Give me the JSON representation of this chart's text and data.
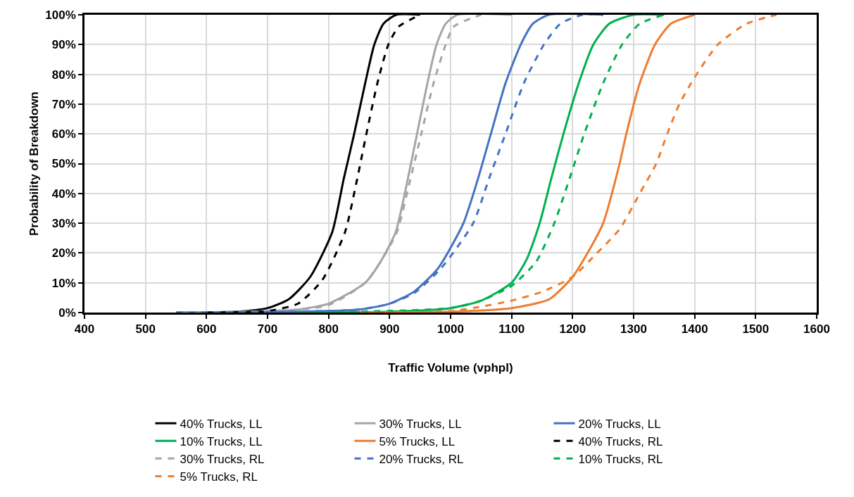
{
  "chart_data": {
    "type": "line",
    "xlabel": "Traffic Volume (vphpl)",
    "ylabel": "Probability of Breakdown",
    "xlim": [
      400,
      1600
    ],
    "xticks": [
      400,
      500,
      600,
      700,
      800,
      900,
      1000,
      1100,
      1200,
      1300,
      1400,
      1500,
      1600
    ],
    "ylim": [
      0,
      100
    ],
    "yticks": [
      {
        "value": 0,
        "label": "0%"
      },
      {
        "value": 10,
        "label": "10%"
      },
      {
        "value": 20,
        "label": "20%"
      },
      {
        "value": 30,
        "label": "30%"
      },
      {
        "value": 40,
        "label": "40%"
      },
      {
        "value": 50,
        "label": "50%"
      },
      {
        "value": 60,
        "label": "60%"
      },
      {
        "value": 70,
        "label": "70%"
      },
      {
        "value": 80,
        "label": "80%"
      },
      {
        "value": 90,
        "label": "90%"
      },
      {
        "value": 100,
        "label": "100%"
      }
    ],
    "grid": true,
    "legend": "bottom",
    "marker": "none",
    "series": [
      {
        "name": "40% Trucks, LL",
        "color": "#000000",
        "line_style": "solid",
        "x": [
          550,
          650,
          700,
          735,
          770,
          806,
          825,
          842,
          860,
          875,
          890,
          911,
          950
        ],
        "values": [
          0,
          0.3,
          1.5,
          4.5,
          12,
          27,
          45,
          60,
          77,
          90,
          97,
          100,
          100
        ]
      },
      {
        "name": "30% Trucks, LL",
        "color": "#a5a5a5",
        "line_style": "solid",
        "x": [
          550,
          700,
          750,
          800,
          860,
          885,
          910,
          928,
          945,
          962,
          977,
          992,
          1011,
          1100
        ],
        "values": [
          0,
          0.5,
          1,
          3,
          10,
          17,
          27,
          43,
          60,
          77,
          90,
          97,
          100,
          100
        ]
      },
      {
        "name": "20% Trucks, LL",
        "color": "#4472c4",
        "line_style": "solid",
        "x": [
          600,
          750,
          850,
          900,
          940,
          980,
          1021,
          1045,
          1066,
          1090,
          1115,
          1135,
          1161,
          1250
        ],
        "values": [
          0,
          0.3,
          1,
          3,
          7,
          15,
          30,
          45,
          60,
          77,
          90,
          97,
          100,
          100
        ]
      },
      {
        "name": "10% Trucks, LL",
        "color": "#00b050",
        "line_style": "solid",
        "x": [
          750,
          900,
          1000,
          1050,
          1100,
          1125,
          1146,
          1165,
          1185,
          1210,
          1234,
          1260,
          1300,
          1350
        ],
        "values": [
          0,
          0.3,
          1.5,
          4,
          10,
          18,
          30,
          45,
          60,
          77,
          90,
          97,
          100,
          100
        ]
      },
      {
        "name": "5% Trucks, LL",
        "color": "#ed7d31",
        "line_style": "solid",
        "x": [
          850,
          1000,
          1100,
          1162,
          1200,
          1230,
          1250,
          1277,
          1288,
          1310,
          1335,
          1361,
          1400
        ],
        "values": [
          0,
          0.3,
          1.5,
          4.5,
          12,
          22,
          30,
          50,
          60,
          77,
          90,
          97,
          100
        ]
      },
      {
        "name": "40% Trucks, RL",
        "color": "#000000",
        "line_style": "dashed",
        "x": [
          600,
          700,
          750,
          790,
          827,
          845,
          862,
          880,
          898,
          915,
          950
        ],
        "values": [
          0,
          0.5,
          3,
          11,
          27,
          43,
          60,
          77,
          90,
          96,
          100
        ]
      },
      {
        "name": "30% Trucks, RL",
        "color": "#a5a5a5",
        "line_style": "dashed",
        "x": [
          550,
          700,
          800,
          860,
          885,
          912,
          932,
          952,
          972,
          992,
          1005,
          1050
        ],
        "values": [
          0,
          0.3,
          2.5,
          10,
          17,
          27,
          43,
          60,
          77,
          90,
          96,
          100
        ]
      },
      {
        "name": "20% Trucks, RL",
        "color": "#4472c4",
        "line_style": "dashed",
        "x": [
          550,
          700,
          850,
          900,
          940,
          985,
          1037,
          1063,
          1090,
          1120,
          1153,
          1180,
          1216,
          1250
        ],
        "values": [
          0,
          0.2,
          1,
          3,
          6.5,
          15,
          30,
          45,
          60,
          77,
          90,
          97,
          100,
          100
        ]
      },
      {
        "name": "10% Trucks, RL",
        "color": "#00b050",
        "line_style": "dashed",
        "x": [
          750,
          1000,
          1050,
          1100,
          1140,
          1170,
          1195,
          1219,
          1250,
          1281,
          1310,
          1350
        ],
        "values": [
          0,
          1.5,
          4,
          9,
          17,
          30,
          45,
          60,
          77,
          90,
          97,
          100
        ]
      },
      {
        "name": "5% Trucks, RL",
        "color": "#ed7d31",
        "line_style": "dashed",
        "x": [
          850,
          1000,
          1050,
          1100,
          1150,
          1200,
          1240,
          1277,
          1310,
          1337,
          1355,
          1375,
          1400,
          1438,
          1485,
          1534
        ],
        "values": [
          0,
          0.5,
          2,
          4,
          7,
          12,
          20,
          28,
          40,
          50,
          60,
          70,
          79,
          90,
          97,
          100
        ]
      }
    ]
  }
}
